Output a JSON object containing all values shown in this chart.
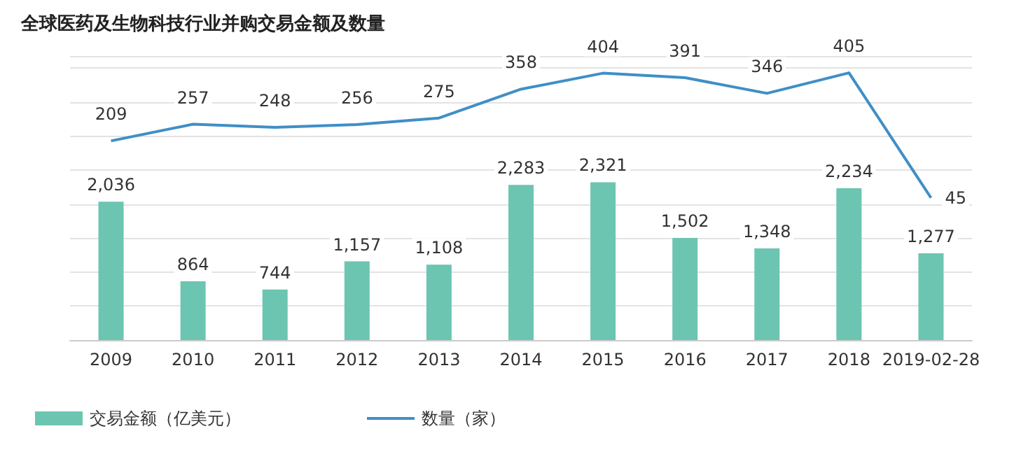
{
  "chart_data": {
    "type": "bar",
    "title": "全球医药及生物科技行业并购交易金额及数量",
    "categories": [
      "2009",
      "2010",
      "2011",
      "2012",
      "2013",
      "2014",
      "2015",
      "2016",
      "2017",
      "2018",
      "2019-02-28"
    ],
    "series": [
      {
        "name": "交易金额（亿美元）",
        "color": "#6cc5b1",
        "values": [
          2036,
          864,
          744,
          1157,
          1108,
          2283,
          2321,
          1502,
          1348,
          2234,
          1277
        ],
        "value_labels": [
          "2,036",
          "864",
          "744",
          "1,157",
          "1,108",
          "2,283",
          "2,321",
          "1,502",
          "1,348",
          "2,234",
          "1,277"
        ]
      },
      {
        "name": "数量（家）",
        "type": "line",
        "axis": "y2",
        "color": "#3f8fc6",
        "values": [
          209,
          257,
          248,
          256,
          275,
          358,
          404,
          391,
          346,
          405,
          45
        ]
      }
    ],
    "data_labels": true,
    "grid": "y",
    "legend": "bottom left",
    "tick_labels": "x",
    "marker": "none"
  }
}
